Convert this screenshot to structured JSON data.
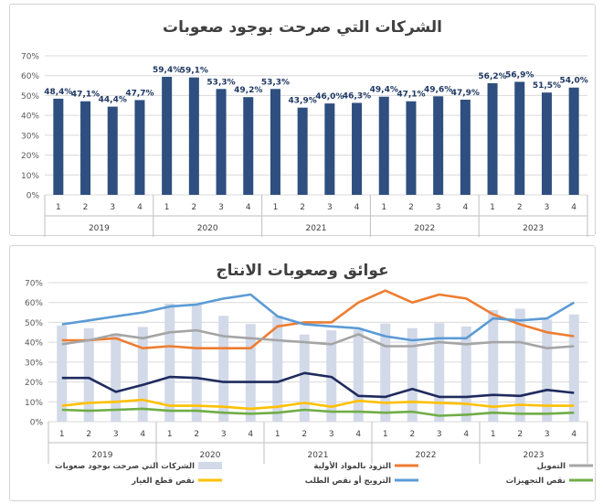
{
  "chart_data": [
    {
      "type": "bar",
      "title": "الشركات التي صرحت بوجود صعوبات",
      "quarters": [
        "1",
        "2",
        "3",
        "4",
        "1",
        "2",
        "3",
        "4",
        "1",
        "2",
        "3",
        "4",
        "1",
        "2",
        "3",
        "4",
        "1",
        "2",
        "3",
        "4"
      ],
      "years": [
        "2019",
        "2020",
        "2021",
        "2022",
        "2023"
      ],
      "values": [
        48.4,
        47.1,
        44.4,
        47.7,
        59.4,
        59.1,
        53.3,
        49.2,
        53.3,
        43.9,
        46.0,
        46.3,
        49.4,
        47.1,
        49.6,
        47.9,
        56.2,
        56.9,
        51.5,
        54.0
      ],
      "value_labels": [
        "48,4%",
        "47,1%",
        "44,4%",
        "47,7%",
        "59,4%",
        "59,1%",
        "53,3%",
        "49,2%",
        "53,3%",
        "43,9%",
        "46,0%",
        "46,3%",
        "49,4%",
        "47,1%",
        "49,6%",
        "47,9%",
        "56,2%",
        "56,9%",
        "51,5%",
        "54,0%"
      ],
      "yticks": [
        "0%",
        "10%",
        "20%",
        "30%",
        "40%",
        "50%",
        "60%",
        "70%"
      ],
      "ylim": [
        0,
        70
      ],
      "color": "#2e4f7f"
    },
    {
      "type": "line",
      "title": "عوائق وصعوبات الانتاج",
      "quarters": [
        "1",
        "2",
        "3",
        "4",
        "1",
        "2",
        "3",
        "4",
        "1",
        "2",
        "3",
        "4",
        "1",
        "2",
        "3",
        "4",
        "1",
        "2",
        "3",
        "4"
      ],
      "years": [
        "2019",
        "2020",
        "2021",
        "2022",
        "2023"
      ],
      "yticks": [
        "0%",
        "10%",
        "20%",
        "30%",
        "40%",
        "50%",
        "60%",
        "70%"
      ],
      "ylim": [
        0,
        70
      ],
      "bars": {
        "name": "الشركات التي صرحت بوجود صعوبات",
        "color": "#d2d9e8",
        "values": [
          48.4,
          47.1,
          44.4,
          47.7,
          59.4,
          59.1,
          53.3,
          49.2,
          53.3,
          43.9,
          46.0,
          46.3,
          49.4,
          47.1,
          49.6,
          47.9,
          56.2,
          56.9,
          51.5,
          54.0
        ]
      },
      "series": [
        {
          "name": "التزود بالمواد الأولية",
          "color": "#ed7d31",
          "values": [
            41,
            41,
            42,
            37,
            38,
            37,
            37,
            37,
            48,
            50,
            50,
            60,
            66,
            60,
            64,
            62,
            54,
            49,
            45,
            43
          ]
        },
        {
          "name": "التمويل",
          "color": "#a5a5a5",
          "values": [
            39,
            41,
            44,
            42,
            45,
            46,
            43,
            42,
            41,
            40,
            39,
            44,
            38,
            38,
            40,
            39,
            40,
            40,
            37,
            38
          ]
        },
        {
          "name": "نقص قطع الغيار",
          "color": "#ffc000",
          "values": [
            8,
            9.5,
            10,
            11,
            8,
            8,
            7.5,
            6.5,
            7.5,
            9.5,
            7.5,
            10.5,
            9.5,
            10,
            9.5,
            9,
            7.5,
            8.5,
            8,
            8
          ]
        },
        {
          "name": "الترويج أو نقص الطلب",
          "color": "#5b9bd5",
          "values": [
            49,
            51,
            53,
            55,
            58,
            59,
            62,
            64,
            53,
            49,
            48,
            47,
            43,
            41,
            42,
            42,
            52,
            51,
            52,
            60
          ]
        },
        {
          "name": "نقص التجهيزات",
          "color": "#70ad47",
          "values": [
            6,
            5.5,
            6,
            6.5,
            5.5,
            5.5,
            4.5,
            4,
            4.5,
            6,
            5,
            5,
            4.5,
            5,
            3,
            3.5,
            4.5,
            4,
            4,
            4.5
          ]
        },
        {
          "name": "",
          "color": "#1f2b5e",
          "values": [
            22,
            22,
            15,
            18.5,
            22.5,
            22,
            20,
            20,
            20,
            24.5,
            22.5,
            13,
            12.5,
            16.5,
            12.5,
            12.5,
            13.5,
            13,
            16,
            14.5
          ]
        }
      ]
    }
  ]
}
